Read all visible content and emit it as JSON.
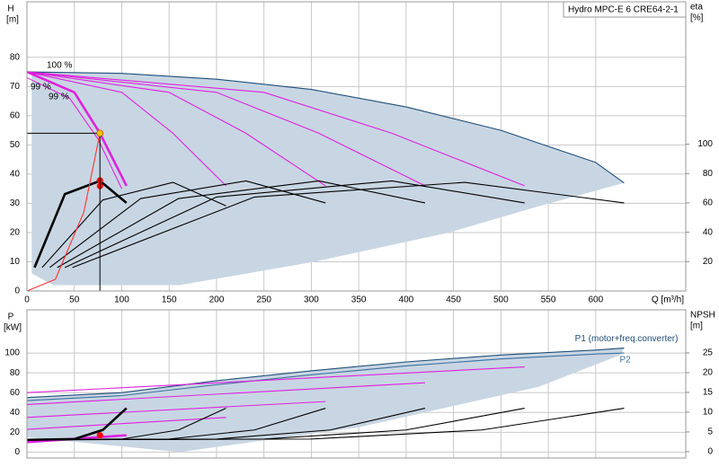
{
  "chart_data": [
    {
      "type": "line",
      "title": "Hydro MPC-E 6 CRE64-2-1",
      "x_label": "Q [m³/h]",
      "y_label": "H",
      "y_unit": "[m]",
      "y2_label": "eta",
      "y2_unit": "[%]",
      "xlim": [
        0,
        695
      ],
      "xticks": [
        0,
        50,
        100,
        150,
        200,
        250,
        300,
        350,
        400,
        450,
        500,
        550,
        600
      ],
      "ylim": [
        0,
        99
      ],
      "yticks": [
        0,
        10,
        20,
        30,
        40,
        50,
        60,
        70,
        80
      ],
      "y2lim": [
        0,
        197
      ],
      "y2ticks": [
        20,
        40,
        60,
        80,
        100
      ],
      "grid": true,
      "annotations": [
        "100 %",
        "99 %",
        "99 %"
      ],
      "series": [
        {
          "style": "area",
          "color": "#c8d6e3",
          "x": [
            5,
            5,
            28,
            161,
            303,
            445,
            540,
            630,
            600,
            500,
            400,
            300,
            200,
            100,
            5
          ],
          "values": [
            75,
            6,
            2,
            2,
            10,
            20,
            29,
            37,
            44,
            55,
            63,
            69,
            72.5,
            74.5,
            75
          ]
        },
        {
          "style": "line",
          "color": "#1f4e79",
          "x": [
            0,
            100,
            200,
            300,
            400,
            500,
            600,
            630
          ],
          "values": [
            75,
            74.5,
            72.5,
            69,
            63,
            55,
            44,
            37
          ]
        },
        {
          "style": "bold",
          "color": "#e020e0",
          "x": [
            0,
            50,
            77,
            105
          ],
          "values": [
            75,
            68,
            54,
            36
          ]
        },
        {
          "style": "line",
          "color": "#e020e0",
          "x": [
            0,
            45,
            75,
            100
          ],
          "values": [
            73,
            66,
            52,
            35
          ]
        },
        {
          "style": "line",
          "color": "#e020e0",
          "x": [
            0,
            100,
            154,
            210
          ],
          "values": [
            75,
            68,
            54,
            36
          ]
        },
        {
          "style": "line",
          "color": "#e020e0",
          "x": [
            0,
            150,
            231,
            315
          ],
          "values": [
            75,
            68,
            54,
            36
          ]
        },
        {
          "style": "line",
          "color": "#e020e0",
          "x": [
            0,
            200,
            308,
            420
          ],
          "values": [
            75,
            68,
            54,
            36
          ]
        },
        {
          "style": "line",
          "color": "#e020e0",
          "x": [
            0,
            250,
            385,
            525
          ],
          "values": [
            75,
            68,
            54,
            36
          ]
        },
        {
          "style": "bold",
          "color": "#000000",
          "axis": "y2",
          "x": [
            8,
            40,
            77,
            105
          ],
          "values": [
            16,
            66,
            75,
            60
          ]
        },
        {
          "style": "line",
          "color": "#000000",
          "axis": "y2",
          "x": [
            16,
            80,
            154,
            210
          ],
          "values": [
            16,
            62,
            74,
            58
          ]
        },
        {
          "style": "line",
          "color": "#000000",
          "axis": "y2",
          "x": [
            24,
            120,
            231,
            315
          ],
          "values": [
            16,
            63,
            75,
            60
          ]
        },
        {
          "style": "line",
          "color": "#000000",
          "axis": "y2",
          "x": [
            32,
            160,
            308,
            420
          ],
          "values": [
            16,
            63,
            75,
            60
          ]
        },
        {
          "style": "line",
          "color": "#000000",
          "axis": "y2",
          "x": [
            40,
            200,
            385,
            525
          ],
          "values": [
            16,
            64,
            75,
            60
          ]
        },
        {
          "style": "line",
          "color": "#000000",
          "axis": "y2",
          "x": [
            48,
            240,
            462,
            630
          ],
          "values": [
            16,
            64,
            74,
            60
          ]
        },
        {
          "style": "line",
          "color": "#ff3030",
          "x": [
            0,
            30,
            60,
            77
          ],
          "values": [
            0,
            4,
            27,
            54
          ]
        },
        {
          "style": "duty",
          "color": "#ffc000",
          "x": [
            77
          ],
          "values": [
            54
          ]
        },
        {
          "style": "marker",
          "color": "#ff0000",
          "axis": "y2",
          "x": [
            77,
            77
          ],
          "values": [
            75.4,
            71.5
          ]
        }
      ]
    },
    {
      "type": "line",
      "y_label": "P",
      "y_unit": "[kW]",
      "y2_label": "NPSH",
      "y2_unit": "[m]",
      "xlim": [
        0,
        695
      ],
      "xticks": [
        0,
        50,
        100,
        150,
        200,
        250,
        300,
        350,
        400,
        450,
        500,
        550,
        600
      ],
      "ylim": [
        -6,
        143.6
      ],
      "yticks": [
        0,
        20,
        40,
        60,
        80,
        100
      ],
      "y2lim": [
        -1.6,
        35.9
      ],
      "y2ticks": [
        0,
        5,
        10,
        15,
        20,
        25
      ],
      "grid": true,
      "series": [
        {
          "style": "area",
          "color": "#c8d6e3",
          "x": [
            0,
            0,
            161,
            350,
            540,
            626,
            630,
            600,
            500,
            400,
            300,
            200,
            100,
            0
          ],
          "values": [
            55,
            15,
            0,
            25,
            66,
            98,
            105,
            103,
            98,
            91,
            82,
            72,
            60,
            55
          ]
        },
        {
          "name": "P1 (motor+freq.converter)",
          "style": "line",
          "color": "#1f4e79",
          "x": [
            0,
            100,
            200,
            300,
            400,
            500,
            600,
            630
          ],
          "values": [
            55,
            60,
            72,
            82,
            91,
            98,
            103,
            105
          ]
        },
        {
          "name": "P2",
          "style": "line",
          "color": "#3d6f9e",
          "x": [
            0,
            100,
            200,
            300,
            400,
            500,
            600,
            630
          ],
          "values": [
            52,
            57,
            68,
            78,
            87,
            94,
            99,
            100
          ]
        },
        {
          "style": "bold",
          "color": "#e020e0",
          "x": [
            0,
            105
          ],
          "values": [
            10,
            17
          ]
        },
        {
          "style": "line",
          "color": "#e020e0",
          "x": [
            0,
            210
          ],
          "values": [
            23,
            35
          ]
        },
        {
          "style": "line",
          "color": "#e020e0",
          "x": [
            0,
            315
          ],
          "values": [
            35,
            51
          ]
        },
        {
          "style": "line",
          "color": "#e020e0",
          "x": [
            0,
            420
          ],
          "values": [
            48,
            70
          ]
        },
        {
          "style": "line",
          "color": "#e020e0",
          "x": [
            0,
            525
          ],
          "values": [
            60,
            86
          ]
        },
        {
          "style": "bold",
          "color": "#000000",
          "axis": "y2",
          "x": [
            0,
            50,
            80,
            105
          ],
          "values": [
            3,
            3.2,
            5.5,
            11
          ]
        },
        {
          "style": "line",
          "color": "#000000",
          "axis": "y2",
          "x": [
            0,
            100,
            160,
            210
          ],
          "values": [
            3,
            3.2,
            5.5,
            11
          ]
        },
        {
          "style": "line",
          "color": "#000000",
          "axis": "y2",
          "x": [
            0,
            150,
            240,
            315
          ],
          "values": [
            3,
            3.2,
            5.5,
            11
          ]
        },
        {
          "style": "line",
          "color": "#000000",
          "axis": "y2",
          "x": [
            0,
            200,
            320,
            420
          ],
          "values": [
            3,
            3.2,
            5.5,
            11
          ]
        },
        {
          "style": "line",
          "color": "#000000",
          "axis": "y2",
          "x": [
            0,
            250,
            400,
            525
          ],
          "values": [
            3,
            3.2,
            5.5,
            11
          ]
        },
        {
          "style": "line",
          "color": "#000000",
          "axis": "y2",
          "x": [
            0,
            300,
            480,
            630
          ],
          "values": [
            3,
            3.2,
            5.5,
            11
          ]
        },
        {
          "style": "marker",
          "color": "#ff0000",
          "x": [
            77
          ],
          "values": [
            17
          ]
        }
      ]
    }
  ]
}
